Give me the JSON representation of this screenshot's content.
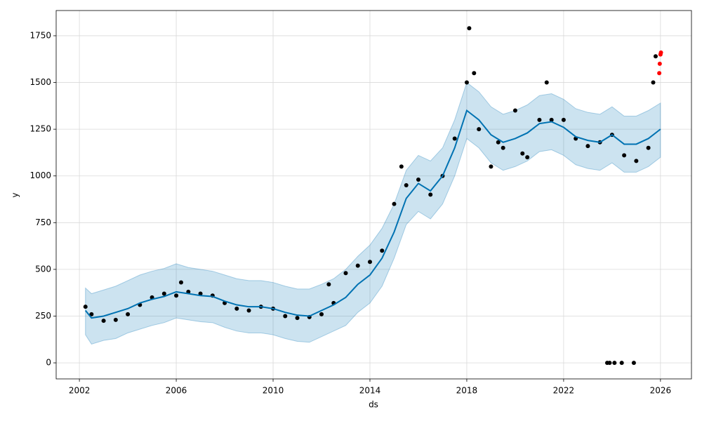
{
  "chart_data": {
    "type": "forecast",
    "xlabel": "ds",
    "ylabel": "y",
    "xlim": [
      2001.04,
      2027.28
    ],
    "ylim": [
      -86,
      1885
    ],
    "xticks": [
      2002,
      2006,
      2010,
      2014,
      2018,
      2022,
      2026
    ],
    "yticks": [
      0,
      250,
      500,
      750,
      1000,
      1250,
      1500,
      1750
    ],
    "grid": true,
    "forecast": {
      "color": "#0072B2",
      "band_color": "#0072B2",
      "x": [
        2002.25,
        2002.5,
        2003,
        2003.5,
        2004,
        2004.5,
        2005,
        2005.5,
        2006,
        2006.5,
        2007,
        2007.5,
        2008,
        2008.5,
        2009,
        2009.5,
        2010,
        2010.5,
        2011,
        2011.5,
        2012,
        2012.5,
        2013,
        2013.5,
        2014,
        2014.5,
        2015,
        2015.5,
        2016,
        2016.5,
        2017,
        2017.5,
        2018,
        2018.5,
        2019,
        2019.5,
        2020,
        2020.5,
        2021,
        2021.5,
        2022,
        2022.5,
        2023,
        2023.5,
        2024,
        2024.5,
        2025,
        2025.5,
        2026
      ],
      "values": [
        280,
        240,
        250,
        270,
        290,
        320,
        340,
        355,
        380,
        370,
        360,
        355,
        330,
        310,
        300,
        300,
        290,
        270,
        255,
        250,
        280,
        310,
        350,
        420,
        470,
        560,
        700,
        880,
        960,
        920,
        1000,
        1150,
        1350,
        1300,
        1220,
        1180,
        1200,
        1230,
        1280,
        1290,
        1260,
        1210,
        1190,
        1180,
        1220,
        1170,
        1170,
        1200,
        1250
      ],
      "upper": [
        400,
        370,
        390,
        410,
        440,
        470,
        490,
        505,
        530,
        510,
        500,
        490,
        470,
        450,
        440,
        440,
        430,
        410,
        395,
        395,
        420,
        450,
        500,
        570,
        630,
        720,
        850,
        1030,
        1110,
        1080,
        1150,
        1300,
        1500,
        1450,
        1370,
        1330,
        1350,
        1380,
        1430,
        1440,
        1410,
        1360,
        1340,
        1330,
        1370,
        1320,
        1320,
        1350,
        1390
      ],
      "lower": [
        150,
        100,
        120,
        130,
        160,
        180,
        200,
        215,
        240,
        230,
        220,
        215,
        190,
        170,
        160,
        160,
        150,
        130,
        115,
        110,
        140,
        170,
        200,
        270,
        320,
        410,
        560,
        740,
        810,
        770,
        850,
        1000,
        1200,
        1150,
        1070,
        1030,
        1050,
        1080,
        1130,
        1140,
        1110,
        1060,
        1040,
        1030,
        1070,
        1020,
        1020,
        1050,
        1100
      ]
    },
    "observed": {
      "color": "#000000",
      "x": [
        2002.25,
        2002.5,
        2003,
        2003.5,
        2004,
        2004.5,
        2005,
        2005.5,
        2006,
        2006.2,
        2006.5,
        2007,
        2007.5,
        2008,
        2008.5,
        2009,
        2009.5,
        2010,
        2010.5,
        2011,
        2011.5,
        2012,
        2012.3,
        2012.5,
        2013,
        2013.5,
        2014,
        2014.5,
        2015,
        2015.3,
        2015.5,
        2016,
        2016.5,
        2017,
        2017.5,
        2018,
        2018.1,
        2018.3,
        2018.5,
        2019,
        2019.3,
        2019.5,
        2020,
        2020.3,
        2020.5,
        2021,
        2021.3,
        2021.5,
        2022,
        2022.5,
        2023,
        2023.5,
        2024,
        2024.5,
        2025,
        2025.5,
        2025.7,
        2025.8,
        2023.8,
        2023.9,
        2024.1,
        2024.4,
        2024.9
      ],
      "values": [
        300,
        260,
        225,
        230,
        260,
        310,
        350,
        370,
        360,
        430,
        380,
        370,
        360,
        320,
        290,
        280,
        300,
        290,
        250,
        240,
        245,
        260,
        420,
        320,
        480,
        520,
        540,
        600,
        850,
        1050,
        950,
        980,
        900,
        1000,
        1200,
        1500,
        1790,
        1550,
        1250,
        1050,
        1180,
        1150,
        1350,
        1120,
        1100,
        1300,
        1500,
        1300,
        1300,
        1200,
        1160,
        1180,
        1220,
        1110,
        1080,
        1150,
        1500,
        1640,
        0,
        0,
        0,
        0,
        0
      ]
    },
    "holdout": {
      "color": "#ff0000",
      "x": [
        2025.95,
        2025.97,
        2026.0,
        2026.02
      ],
      "values": [
        1550,
        1600,
        1650,
        1660
      ]
    }
  }
}
